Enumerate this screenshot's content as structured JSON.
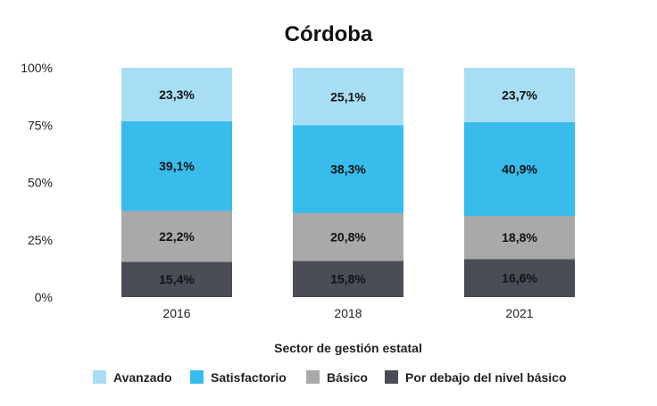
{
  "chart_data": {
    "type": "bar",
    "stacked": true,
    "title": "Córdoba",
    "xlabel": "Sector de gestión estatal",
    "ylabel": "",
    "ylim": [
      0,
      100
    ],
    "yticks": [
      "0%",
      "25%",
      "50%",
      "75%",
      "100%"
    ],
    "categories": [
      "2016",
      "2018",
      "2021"
    ],
    "series": [
      {
        "name": "Por debajo del nivel básico",
        "color": "#4a4d56",
        "values": [
          15.4,
          15.8,
          16.6
        ],
        "labels": [
          "15,4%",
          "15,8%",
          "16,6%"
        ]
      },
      {
        "name": "Básico",
        "color": "#a9a8ab",
        "values": [
          22.2,
          20.8,
          18.8
        ],
        "labels": [
          "22,2%",
          "20,8%",
          "18,8%"
        ]
      },
      {
        "name": "Satisfactorio",
        "color": "#38bceb",
        "values": [
          39.1,
          38.3,
          40.9
        ],
        "labels": [
          "39,1%",
          "38,3%",
          "40,9%"
        ]
      },
      {
        "name": "Avanzado",
        "color": "#a8def5",
        "values": [
          23.3,
          25.1,
          23.7
        ],
        "labels": [
          "23,3%",
          "25,1%",
          "23,7%"
        ]
      }
    ],
    "legend": {
      "placement": "bottom",
      "order": [
        "Avanzado",
        "Satisfactorio",
        "Básico",
        "Por debajo del nivel básico"
      ]
    },
    "grid": false
  }
}
